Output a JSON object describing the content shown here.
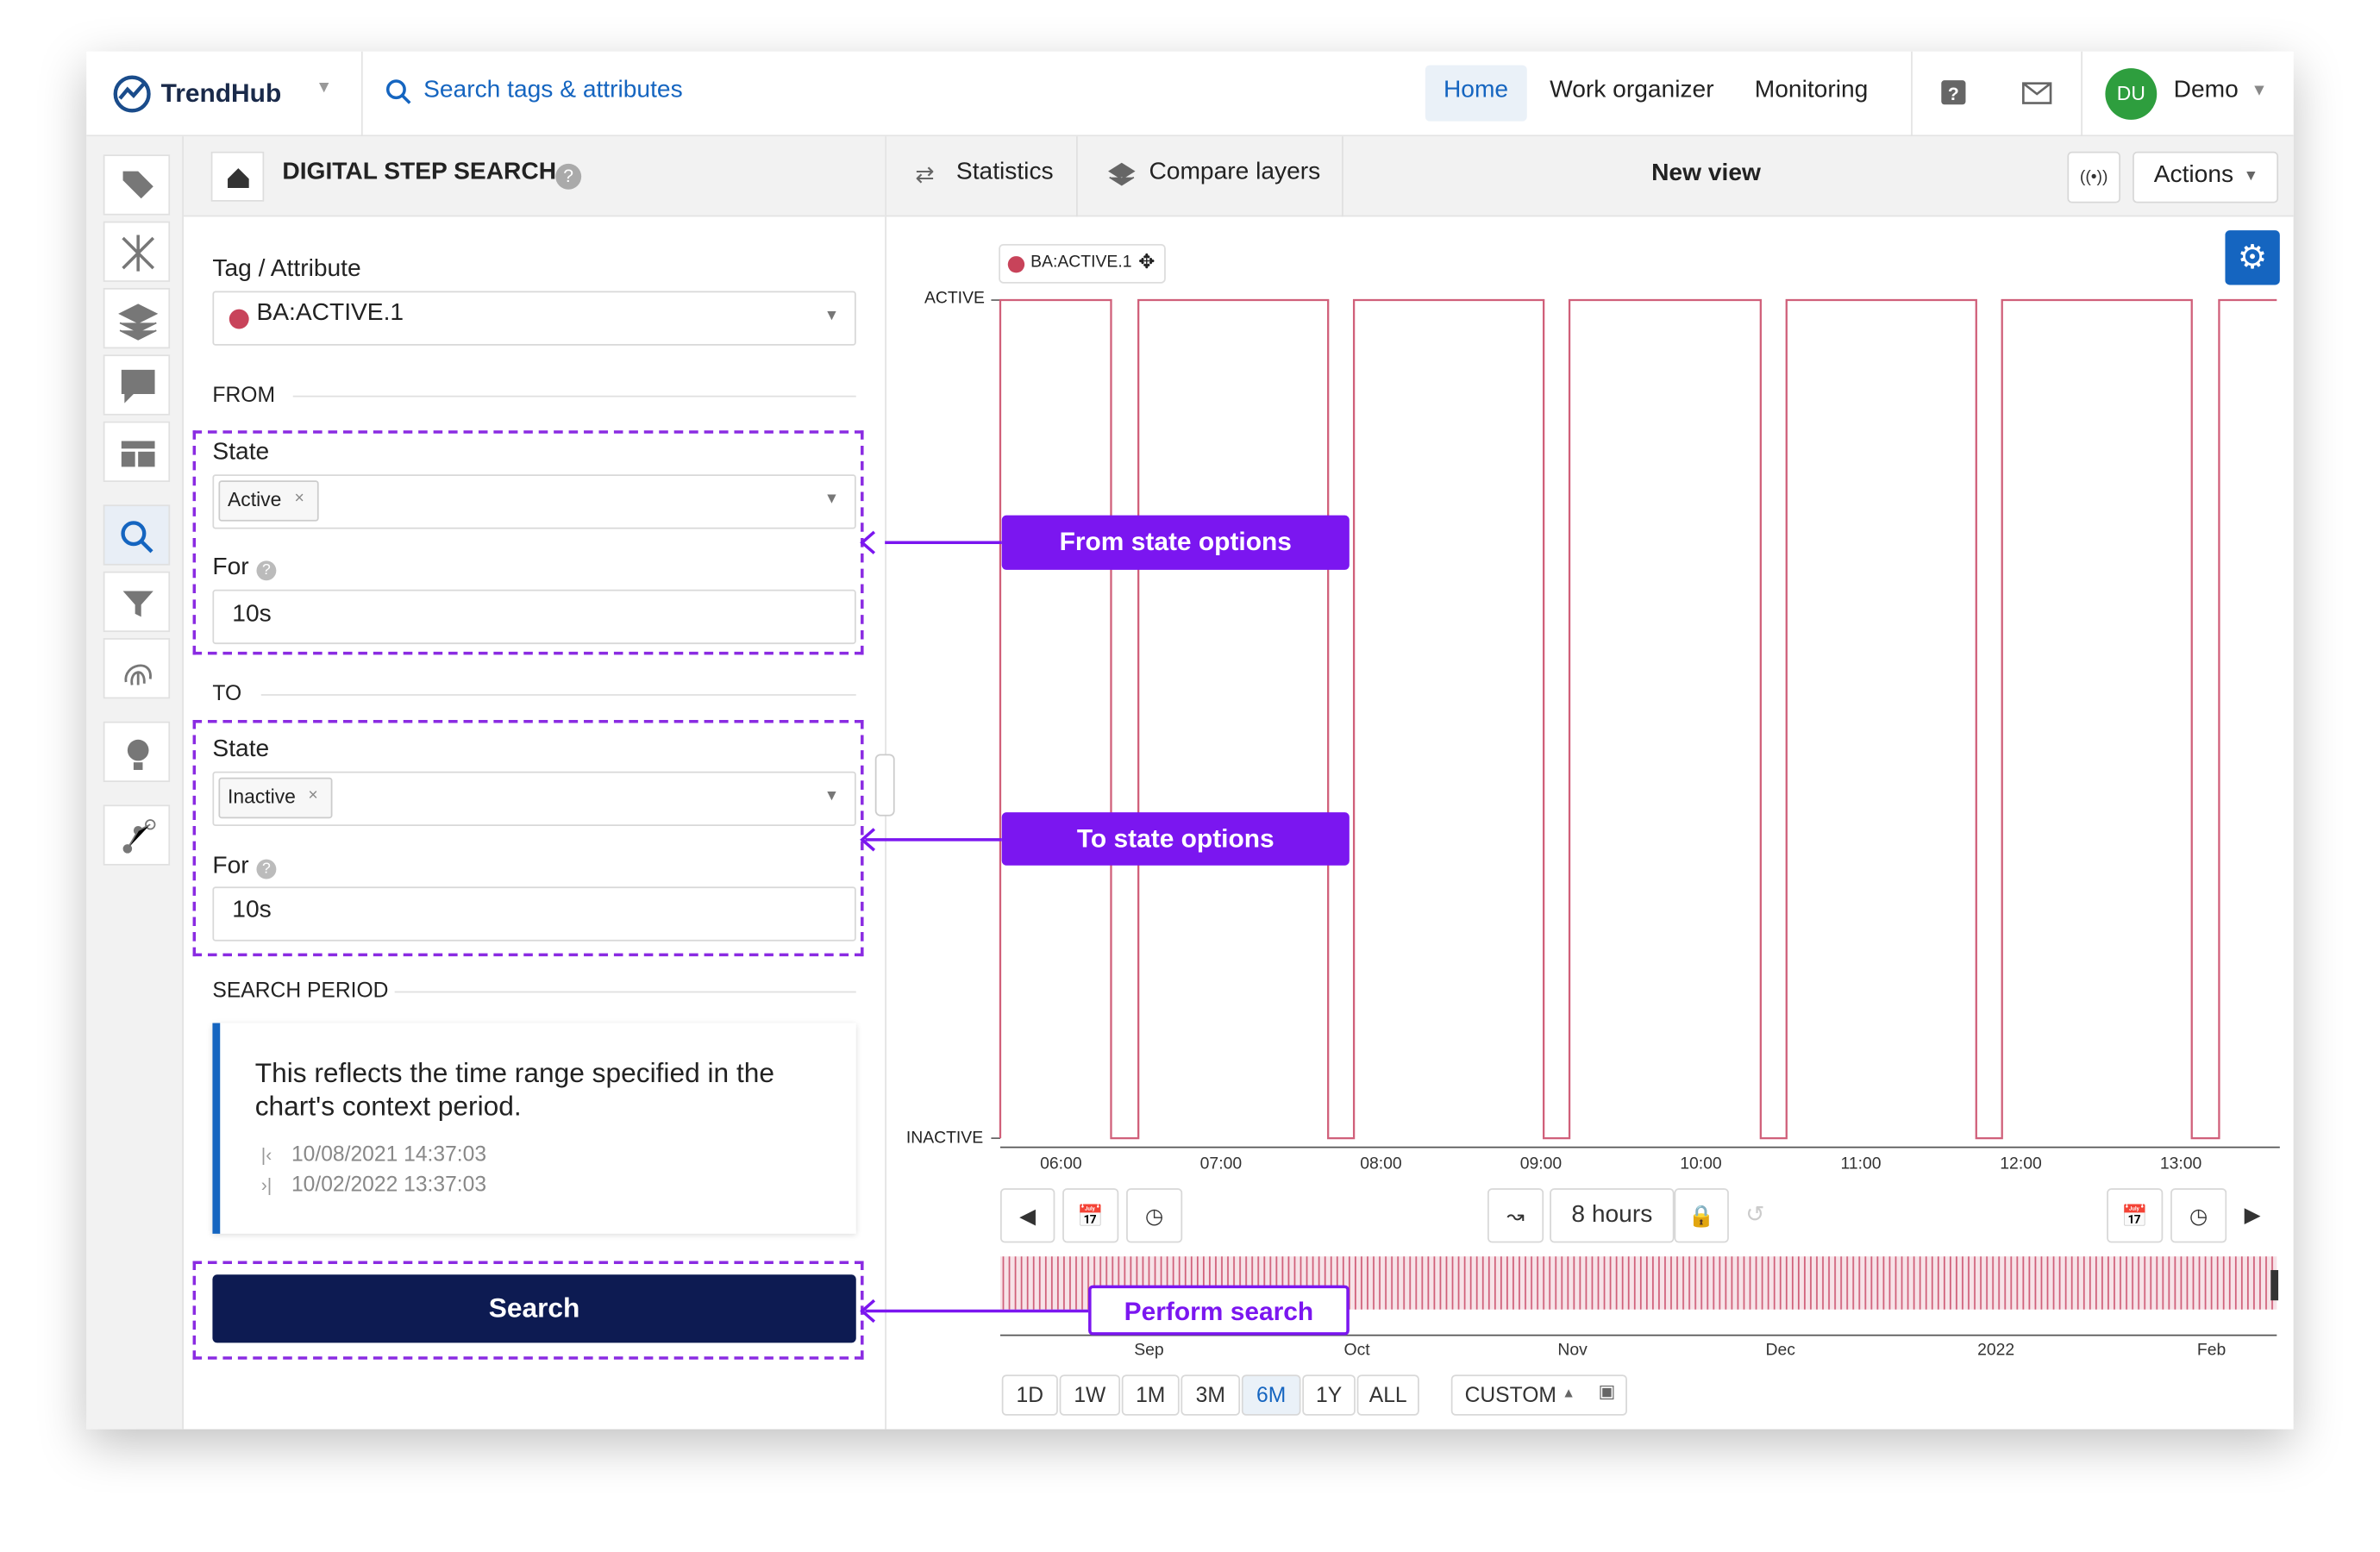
{
  "nav": {
    "brand": "TrendHub",
    "search": "Search tags & attributes",
    "links": [
      "Home",
      "Work organizer",
      "Monitoring"
    ],
    "avatar": "DU",
    "user": "Demo"
  },
  "panel": {
    "title": "DIGITAL STEP SEARCH",
    "tag_label": "Tag / Attribute",
    "tag_value": "BA:ACTIVE.1",
    "from_heading": "FROM",
    "from_state_label": "State",
    "from_state": "Active",
    "from_for_label": "For",
    "from_for": "10s",
    "to_heading": "TO",
    "to_state_label": "State",
    "to_state": "Inactive",
    "to_for_label": "For",
    "to_for": "10s",
    "period_heading": "SEARCH PERIOD",
    "period_note": "This reflects the time range specified in the chart's context period.",
    "period_start": "10/08/2021 14:37:03",
    "period_end": "10/02/2022 13:37:03",
    "search_button": "Search"
  },
  "toolbar": {
    "statistics": "Statistics",
    "compare": "Compare layers",
    "view": "New view",
    "actions": "Actions"
  },
  "chart": {
    "legend": "BA:ACTIVE.1",
    "y_labels": [
      "ACTIVE",
      "INACTIVE"
    ],
    "x_labels": [
      "06:00",
      "07:00",
      "08:00",
      "09:00",
      "10:00",
      "11:00",
      "12:00",
      "13:00"
    ],
    "range": "8 hours",
    "overview_labels": [
      "Sep",
      "Oct",
      "Nov",
      "Dec",
      "2022",
      "Feb"
    ],
    "range_buttons": [
      "1D",
      "1W",
      "1M",
      "3M",
      "6M",
      "1Y",
      "ALL"
    ],
    "custom": "CUSTOM"
  },
  "annotations": [
    "From state options",
    "To state options",
    "Perform search"
  ]
}
